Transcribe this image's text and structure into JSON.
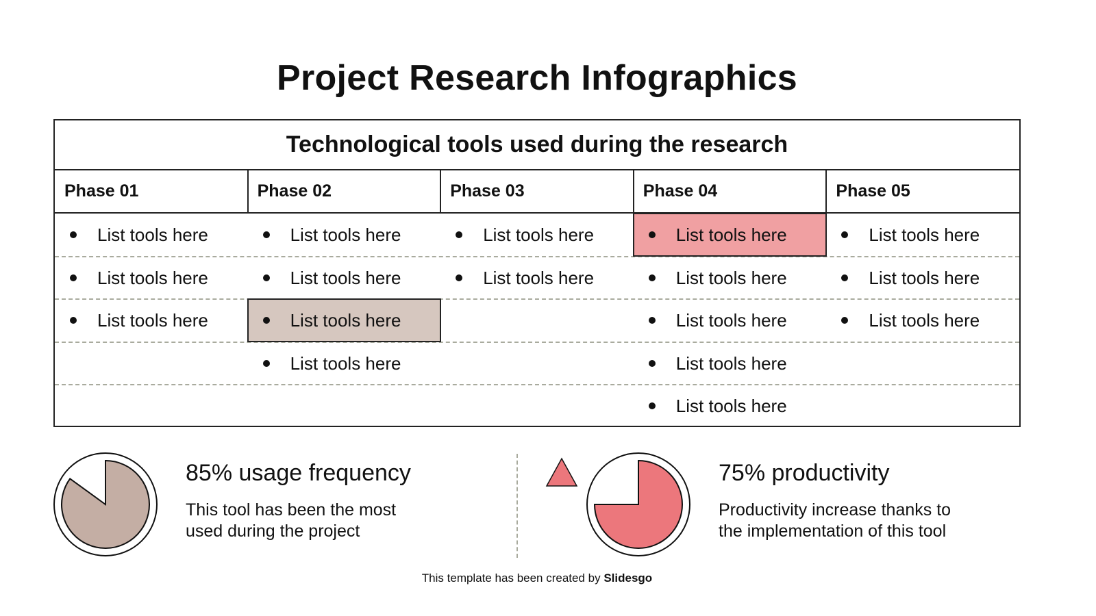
{
  "title": "Project Research Infographics",
  "table": {
    "title": "Technological tools used during the research",
    "phases": [
      {
        "label": "Phase 01",
        "items": [
          "List tools here",
          "List tools here",
          "List tools here"
        ],
        "highlight": null
      },
      {
        "label": "Phase 02",
        "items": [
          "List tools here",
          "List tools here",
          "List tools here",
          "List tools here"
        ],
        "highlight": {
          "index": 2,
          "color": "#d6c7bf"
        }
      },
      {
        "label": "Phase 03",
        "items": [
          "List tools here",
          "List tools here"
        ],
        "highlight": null
      },
      {
        "label": "Phase 04",
        "items": [
          "List tools here",
          "List tools here",
          "List tools here",
          "List tools here",
          "List tools here"
        ],
        "highlight": {
          "index": 0,
          "color": "#f0a0a2"
        }
      },
      {
        "label": "Phase 05",
        "items": [
          "List tools here",
          "List tools here",
          "List tools here"
        ],
        "highlight": null
      }
    ]
  },
  "stats": [
    {
      "percent": 85,
      "heading": "85% usage frequency",
      "lines": [
        "This tool has been the most",
        "used during the project"
      ],
      "color": "#c4aea4"
    },
    {
      "percent": 75,
      "heading": "75% productivity",
      "lines": [
        "Productivity increase thanks to",
        "the implementation of this tool"
      ],
      "color": "#ec777c",
      "icon": "triangle-up-icon"
    }
  ],
  "credit": {
    "text": "This template has been created by ",
    "brand": "Slidesgo"
  }
}
